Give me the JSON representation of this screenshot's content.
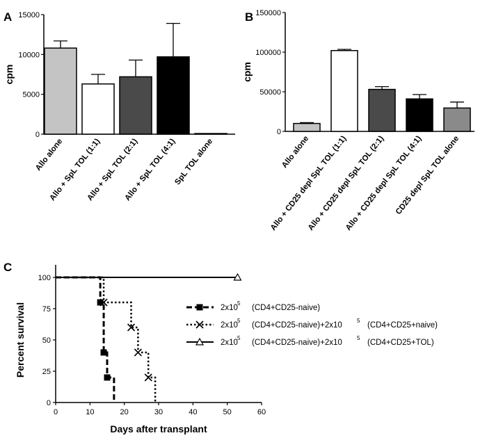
{
  "chart_data": [
    {
      "panel": "A",
      "type": "bar",
      "ylabel": "cpm",
      "ylim": [
        0,
        15000
      ],
      "yticks": [
        "0",
        "5000",
        "10000",
        "15000"
      ],
      "categories": [
        "Allo alone",
        "Allo + SpL TOL (1:1)",
        "Allo + SpL TOL (2:1)",
        "Allo + SpL TOL (4:1)",
        "SpL TOL alone"
      ],
      "values": [
        10800,
        6300,
        7200,
        9700,
        80
      ],
      "errors": [
        900,
        1200,
        2100,
        4200,
        0
      ],
      "colors": [
        "#c4c4c4",
        "#ffffff",
        "#4a4a4a",
        "#000000",
        "#ffffff"
      ]
    },
    {
      "panel": "B",
      "type": "bar",
      "ylabel": "cpm",
      "ylim": [
        0,
        150000
      ],
      "yticks": [
        "0",
        "50000",
        "100000",
        "150000"
      ],
      "categories": [
        "Allo alone",
        "Allo + CD25 depl SpL TOL (1:1)",
        "Allo + CD25 depl SpL TOL (2:1)",
        "Allo + CD25 depl SpL TOL (4:1)",
        "CD25 depl SpL TOL alone"
      ],
      "values": [
        10000,
        102000,
        53000,
        41000,
        29500
      ],
      "errors": [
        1000,
        1500,
        3500,
        5500,
        7500
      ],
      "colors": [
        "#c4c4c4",
        "#ffffff",
        "#4a4a4a",
        "#000000",
        "#8a8a8a"
      ]
    },
    {
      "panel": "C",
      "type": "line",
      "step": true,
      "xlabel": "Days after transplant",
      "ylabel": "Percent survival",
      "xlim": [
        0,
        60
      ],
      "ylim": [
        0,
        100
      ],
      "xticks": [
        "0",
        "10",
        "20",
        "30",
        "40",
        "50",
        "60"
      ],
      "yticks": [
        "0",
        "25",
        "50",
        "75",
        "100"
      ],
      "legend_position": "right",
      "series": [
        {
          "base": "2x10",
          "exp": "5",
          "name": "(CD4+CD25-naive)",
          "exp2": "",
          "name2": "",
          "marker": "square",
          "dash": "dashed",
          "x": [
            0,
            13,
            14,
            15,
            17
          ],
          "y": [
            100,
            80,
            40,
            20,
            0
          ],
          "markers_x": [
            13,
            14,
            15
          ],
          "markers_y": [
            80,
            40,
            20
          ]
        },
        {
          "base": "2x10",
          "exp": "5",
          "name": "(CD4+CD25-naive)+2x10",
          "exp2": "5",
          "name2": "(CD4+CD25+naive)",
          "marker": "x",
          "dash": "dotted",
          "x": [
            0,
            14,
            22,
            24,
            27,
            29
          ],
          "y": [
            100,
            80,
            60,
            40,
            20,
            0
          ],
          "markers_x": [
            14,
            22,
            24,
            27
          ],
          "markers_y": [
            80,
            60,
            40,
            20
          ]
        },
        {
          "base": "2x10",
          "exp": "5",
          "name": "(CD4+CD25-naive)+2x10",
          "exp2": "5",
          "name2": "(CD4+CD25+TOL)",
          "marker": "triangle",
          "dash": "solid",
          "x": [
            0,
            53
          ],
          "y": [
            100,
            100
          ],
          "markers_x": [
            53
          ],
          "markers_y": [
            100
          ]
        }
      ]
    }
  ]
}
